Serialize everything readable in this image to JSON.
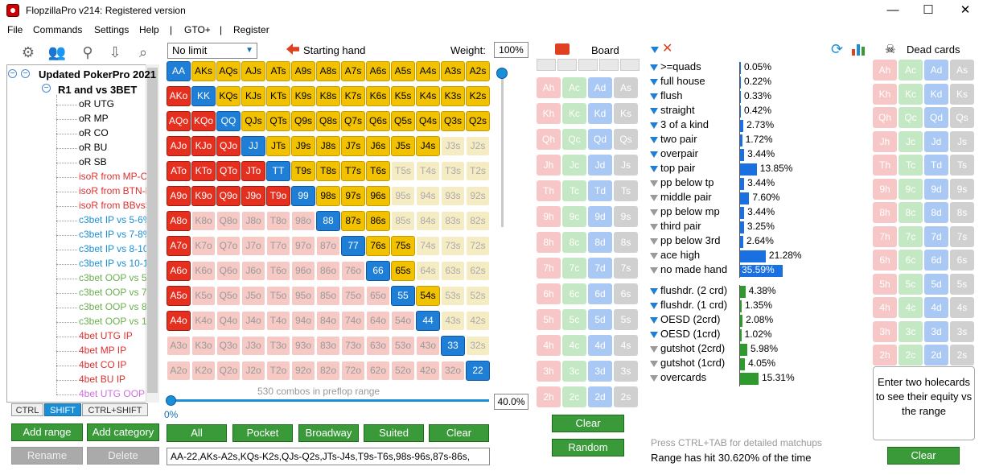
{
  "window": {
    "title": "FlopzillaPro v214: Registered version",
    "min": "—",
    "max": "☐",
    "close": "✕"
  },
  "menu": [
    "File",
    "Commands",
    "Settings",
    "Help",
    "|",
    "GTO+",
    "|",
    "Register"
  ],
  "tree": {
    "root": "Updated PokerPro 2021",
    "group": "R1 and vs 3BET",
    "items": [
      {
        "label": "oR UTG",
        "color": "#000000"
      },
      {
        "label": "oR MP",
        "color": "#000000"
      },
      {
        "label": "oR CO",
        "color": "#000000"
      },
      {
        "label": "oR BU",
        "color": "#000000"
      },
      {
        "label": "oR SB",
        "color": "#000000"
      },
      {
        "label": "isoR from MP-C",
        "color": "#e03030"
      },
      {
        "label": "isoR from BTN-B",
        "color": "#e03030"
      },
      {
        "label": "isoR from BBvsS",
        "color": "#e03030"
      },
      {
        "label": "c3bet IP vs 5-6%",
        "color": "#1a8fd6"
      },
      {
        "label": "c3bet IP vs 7-8%",
        "color": "#1a8fd6"
      },
      {
        "label": "c3bet IP vs 8-10",
        "color": "#1a8fd6"
      },
      {
        "label": "c3bet IP vs 10-15",
        "color": "#1a8fd6"
      },
      {
        "label": "c3bet OOP vs 5-",
        "color": "#6ab04c"
      },
      {
        "label": "c3bet OOP vs 7-",
        "color": "#6ab04c"
      },
      {
        "label": "c3bet OOP vs 8-",
        "color": "#6ab04c"
      },
      {
        "label": "c3bet OOP vs 12",
        "color": "#6ab04c"
      },
      {
        "label": "4bet UTG IP",
        "color": "#e03030"
      },
      {
        "label": "4bet MP IP",
        "color": "#e03030"
      },
      {
        "label": "4bet CO IP",
        "color": "#e03030"
      },
      {
        "label": "4bet BU IP",
        "color": "#e03030"
      },
      {
        "label": "4bet UTG OOP",
        "color": "#d070e0"
      }
    ]
  },
  "mod_tabs": [
    "CTRL",
    "SHIFT",
    "CTRL+SHIFT"
  ],
  "left_buttons": {
    "add_range": "Add range",
    "add_category": "Add category",
    "rename": "Rename",
    "delete": "Delete"
  },
  "hand_panel": {
    "limit": "No limit",
    "starting_hand": "Starting hand",
    "weight_label": "Weight:",
    "weight": "100%",
    "combos": "530 combos in preflop range",
    "pct_left": "0%",
    "pct_right": "40.0%"
  },
  "ranks": [
    "A",
    "K",
    "Q",
    "J",
    "T",
    "9",
    "8",
    "7",
    "6",
    "5",
    "4",
    "3",
    "2"
  ],
  "selected": [
    "AA",
    "AKs",
    "AQs",
    "AJs",
    "ATs",
    "A9s",
    "A8s",
    "A7s",
    "A6s",
    "A5s",
    "A4s",
    "A3s",
    "A2s",
    "AKo",
    "KK",
    "KQs",
    "KJs",
    "KTs",
    "K9s",
    "K8s",
    "K7s",
    "K6s",
    "K5s",
    "K4s",
    "K3s",
    "K2s",
    "AQo",
    "KQo",
    "QQ",
    "QJs",
    "QTs",
    "Q9s",
    "Q8s",
    "Q7s",
    "Q6s",
    "Q5s",
    "Q4s",
    "Q3s",
    "Q2s",
    "AJo",
    "KJo",
    "QJo",
    "JJ",
    "JTs",
    "J9s",
    "J8s",
    "J7s",
    "J6s",
    "J5s",
    "J4s",
    "ATo",
    "KTo",
    "QTo",
    "JTo",
    "TT",
    "T9s",
    "T8s",
    "T7s",
    "T6s",
    "A9o",
    "K9o",
    "Q9o",
    "J9o",
    "T9o",
    "99",
    "98s",
    "97s",
    "96s",
    "A8o",
    "88",
    "87s",
    "86s",
    "A7o",
    "77",
    "76s",
    "75s",
    "A6o",
    "66",
    "65s",
    "A5o",
    "55",
    "54s",
    "A4o",
    "44",
    "33",
    "22"
  ],
  "range_buttons": {
    "all": "All",
    "pocket": "Pocket",
    "broadway": "Broadway",
    "suited": "Suited",
    "clear": "Clear"
  },
  "range_text": "AA-22,AKs-A2s,KQs-K2s,QJs-Q2s,JTs-J4s,T9s-T6s,98s-96s,87s-86s,",
  "board": {
    "label": "Board",
    "clear": "Clear",
    "random": "Random"
  },
  "card_ranks": [
    "A",
    "K",
    "Q",
    "J",
    "T",
    "9",
    "8",
    "7",
    "6",
    "5",
    "4",
    "3",
    "2"
  ],
  "suits": [
    "h",
    "c",
    "d",
    "s"
  ],
  "suit_colors": {
    "h": "#f7c6c6",
    "c": "#c3e8c3",
    "d": "#a9c9f4",
    "s": "#d0d0d0"
  },
  "stats": [
    {
      "label": ">=quads",
      "value": "0.05%",
      "pct": 0.05,
      "filter": "blue"
    },
    {
      "label": "full house",
      "value": "0.22%",
      "pct": 0.22,
      "filter": "blue"
    },
    {
      "label": "flush",
      "value": "0.33%",
      "pct": 0.33,
      "filter": "blue"
    },
    {
      "label": "straight",
      "value": "0.42%",
      "pct": 0.42,
      "filter": "blue"
    },
    {
      "label": "3 of a kind",
      "value": "2.73%",
      "pct": 2.73,
      "filter": "blue"
    },
    {
      "label": "two pair",
      "value": "1.72%",
      "pct": 1.72,
      "filter": "blue"
    },
    {
      "label": "overpair",
      "value": "3.44%",
      "pct": 3.44,
      "filter": "blue"
    },
    {
      "label": "top pair",
      "value": "13.85%",
      "pct": 13.85,
      "filter": "blue"
    },
    {
      "label": "pp below tp",
      "value": "3.44%",
      "pct": 3.44,
      "filter": "grey"
    },
    {
      "label": "middle pair",
      "value": "7.60%",
      "pct": 7.6,
      "filter": "grey"
    },
    {
      "label": "pp below mp",
      "value": "3.44%",
      "pct": 3.44,
      "filter": "grey"
    },
    {
      "label": "third pair",
      "value": "3.25%",
      "pct": 3.25,
      "filter": "grey"
    },
    {
      "label": "pp below 3rd",
      "value": "2.64%",
      "pct": 2.64,
      "filter": "grey"
    },
    {
      "label": "ace high",
      "value": "21.28%",
      "pct": 21.28,
      "filter": "grey"
    },
    {
      "label": "no made hand",
      "value": "35.59%",
      "pct": 35.59,
      "filter": "grey"
    }
  ],
  "draws": [
    {
      "label": "flushdr. (2 crd)",
      "value": "4.38%",
      "pct": 4.38,
      "filter": "blue"
    },
    {
      "label": "flushdr. (1 crd)",
      "value": "1.35%",
      "pct": 1.35,
      "filter": "blue"
    },
    {
      "label": "OESD (2crd)",
      "value": "2.08%",
      "pct": 2.08,
      "filter": "blue"
    },
    {
      "label": "OESD (1crd)",
      "value": "1.02%",
      "pct": 1.02,
      "filter": "blue"
    },
    {
      "label": "gutshot (2crd)",
      "value": "5.98%",
      "pct": 5.98,
      "filter": "grey"
    },
    {
      "label": "gutshot (1crd)",
      "value": "4.05%",
      "pct": 4.05,
      "filter": "grey"
    },
    {
      "label": "overcards",
      "value": "15.31%",
      "pct": 15.31,
      "filter": "grey"
    }
  ],
  "footer": {
    "hint": "Press CTRL+TAB for detailed matchups",
    "hit": "Range has hit 30.620% of the time"
  },
  "dead": {
    "label": "Dead cards",
    "hole_text": "Enter two holecards to see their equity vs the range",
    "clear": "Clear"
  },
  "colors": {
    "pair": "#1f7fd6",
    "suited": "#f2c200",
    "offsuit": "#e53020",
    "button": "#3a9a3a"
  }
}
